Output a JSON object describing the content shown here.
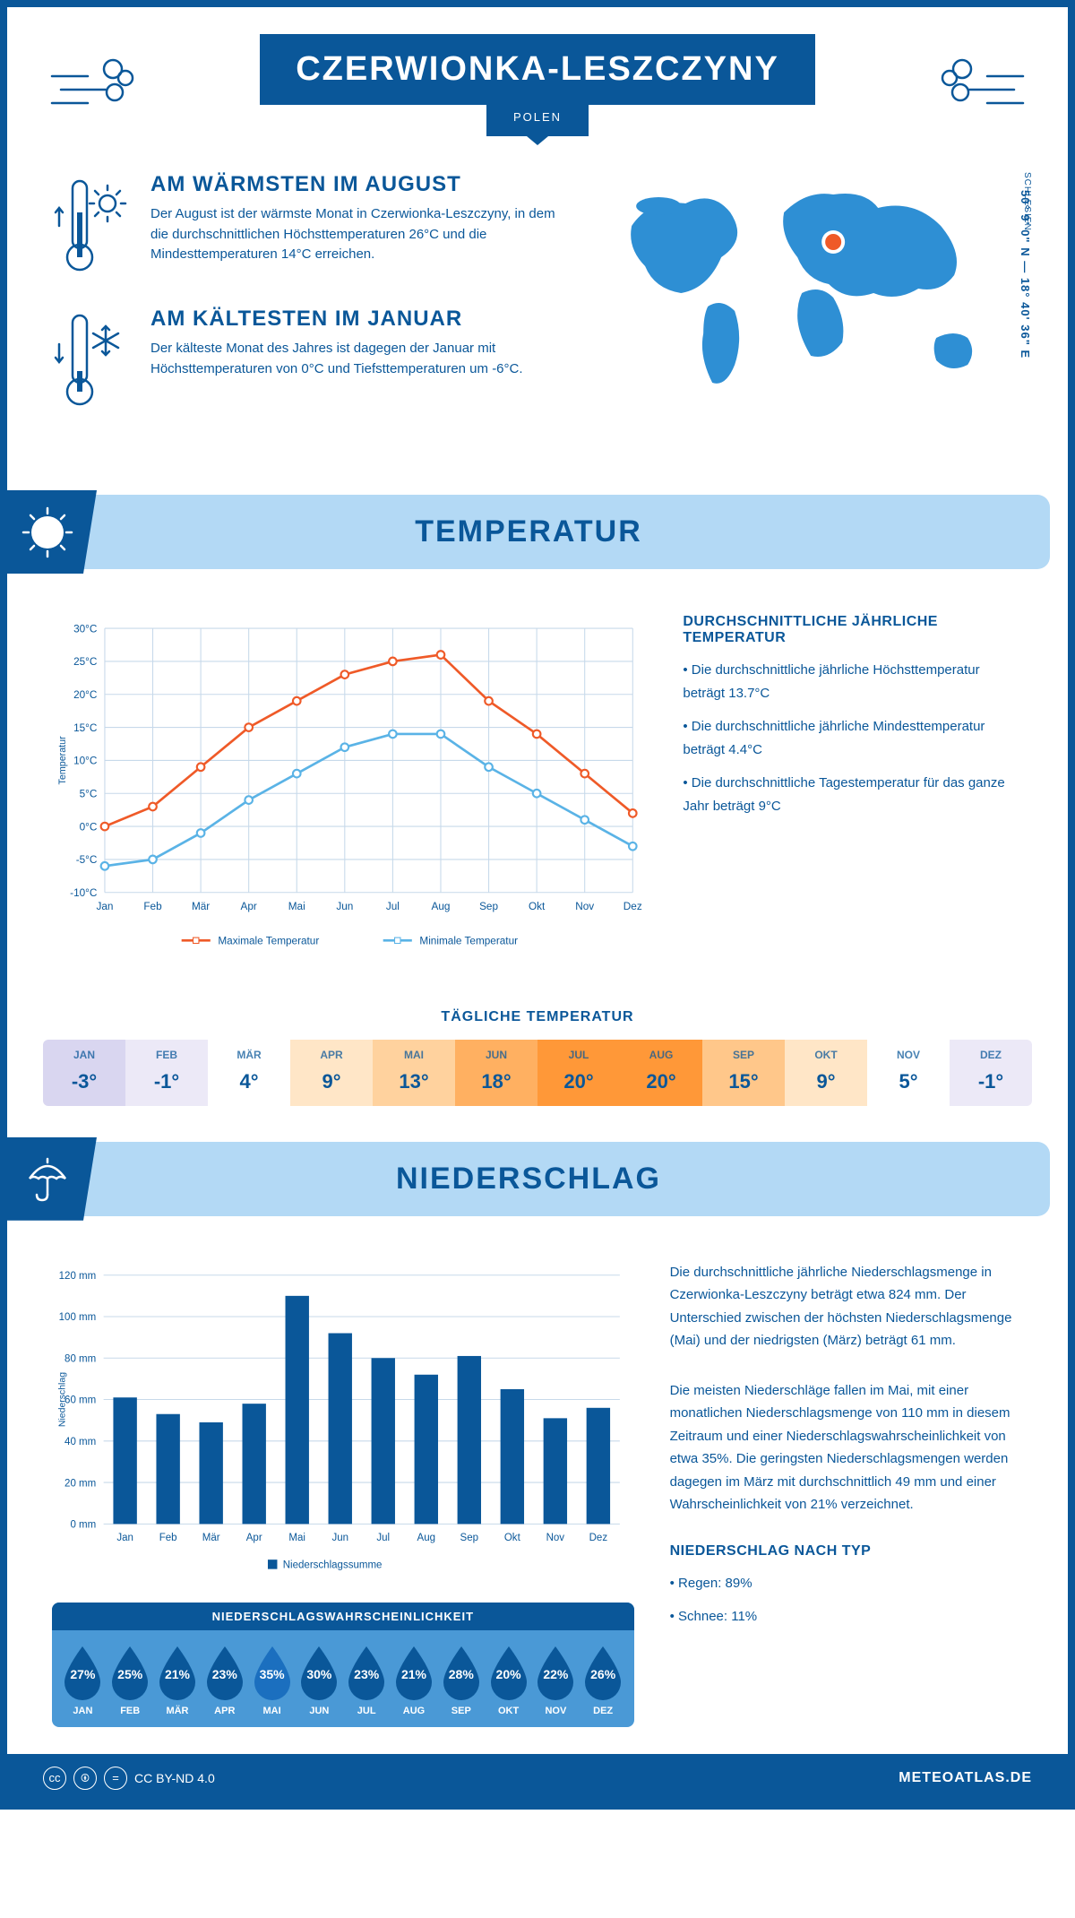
{
  "header": {
    "city": "CZERWIONKA-LESZCZYNY",
    "country": "POLEN",
    "coords": "50° 9' 0\" N — 18° 40' 36\" E",
    "region": "SCHLESIEN"
  },
  "facts": {
    "warm_title": "AM WÄRMSTEN IM AUGUST",
    "warm_text": "Der August ist der wärmste Monat in Czerwionka-Leszczyny, in dem die durchschnittlichen Höchsttemperaturen 26°C und die Mindesttemperaturen 14°C erreichen.",
    "cold_title": "AM KÄLTESTEN IM JANUAR",
    "cold_text": "Der kälteste Monat des Jahres ist dagegen der Januar mit Höchsttemperaturen von 0°C und Tiefsttemperaturen um -6°C."
  },
  "temp_section": {
    "title": "TEMPERATUR",
    "stats_title": "DURCHSCHNITTLICHE JÄHRLICHE TEMPERATUR",
    "stat1": "• Die durchschnittliche jährliche Höchsttemperatur beträgt 13.7°C",
    "stat2": "• Die durchschnittliche jährliche Mindesttemperatur beträgt 4.4°C",
    "stat3": "• Die durchschnittliche Tagestemperatur für das ganze Jahr beträgt 9°C",
    "daily_title": "TÄGLICHE TEMPERATUR",
    "chart": {
      "months": [
        "Jan",
        "Feb",
        "Mär",
        "Apr",
        "Mai",
        "Jun",
        "Jul",
        "Aug",
        "Sep",
        "Okt",
        "Nov",
        "Dez"
      ],
      "max": [
        0,
        3,
        9,
        15,
        19,
        23,
        25,
        26,
        19,
        14,
        8,
        2
      ],
      "min": [
        -6,
        -5,
        -1,
        4,
        8,
        12,
        14,
        14,
        9,
        5,
        1,
        -3
      ],
      "ylim": [
        -10,
        30
      ],
      "ytick_step": 5,
      "max_color": "#ef5a28",
      "min_color": "#5ab3e6",
      "grid_color": "#c7d9ea",
      "legend_max": "Maximale Temperatur",
      "legend_min": "Minimale Temperatur",
      "ylabel": "Temperatur"
    },
    "daily": {
      "months": [
        "JAN",
        "FEB",
        "MÄR",
        "APR",
        "MAI",
        "JUN",
        "JUL",
        "AUG",
        "SEP",
        "OKT",
        "NOV",
        "DEZ"
      ],
      "values": [
        "-3°",
        "-1°",
        "4°",
        "9°",
        "13°",
        "18°",
        "20°",
        "20°",
        "15°",
        "9°",
        "5°",
        "-1°"
      ],
      "colors": [
        "#d9d6f0",
        "#ece9f7",
        "#ffffff",
        "#ffe6c7",
        "#ffd29e",
        "#ffb061",
        "#ff9838",
        "#ff9838",
        "#ffc78a",
        "#ffe6c7",
        "#ffffff",
        "#ece9f7"
      ]
    }
  },
  "precip_section": {
    "title": "NIEDERSCHLAG",
    "text1": "Die durchschnittliche jährliche Niederschlagsmenge in Czerwionka-Leszczyny beträgt etwa 824 mm. Der Unterschied zwischen der höchsten Niederschlagsmenge (Mai) und der niedrigsten (März) beträgt 61 mm.",
    "text2": "Die meisten Niederschläge fallen im Mai, mit einer monatlichen Niederschlagsmenge von 110 mm in diesem Zeitraum und einer Niederschlagswahrscheinlichkeit von etwa 35%. Die geringsten Niederschlagsmengen werden dagegen im März mit durchschnittlich 49 mm und einer Wahrscheinlichkeit von 21% verzeichnet.",
    "type_title": "NIEDERSCHLAG NACH TYP",
    "type_rain": "• Regen: 89%",
    "type_snow": "• Schnee: 11%",
    "chart": {
      "months": [
        "Jan",
        "Feb",
        "Mär",
        "Apr",
        "Mai",
        "Jun",
        "Jul",
        "Aug",
        "Sep",
        "Okt",
        "Nov",
        "Dez"
      ],
      "values": [
        61,
        53,
        49,
        58,
        110,
        92,
        80,
        72,
        81,
        65,
        51,
        56
      ],
      "ylim": [
        0,
        120
      ],
      "ytick_step": 20,
      "bar_color": "#0a5799",
      "grid_color": "#c7d9ea",
      "legend": "Niederschlagssumme",
      "ylabel": "Niederschlag"
    },
    "prob": {
      "title": "NIEDERSCHLAGSWAHRSCHEINLICHKEIT",
      "months": [
        "JAN",
        "FEB",
        "MÄR",
        "APR",
        "MAI",
        "JUN",
        "JUL",
        "AUG",
        "SEP",
        "OKT",
        "NOV",
        "DEZ"
      ],
      "values": [
        "27%",
        "25%",
        "21%",
        "23%",
        "35%",
        "30%",
        "23%",
        "21%",
        "28%",
        "20%",
        "22%",
        "26%"
      ],
      "drop_color": "#0a5799",
      "drop_max_color": "#1b6fbf"
    }
  },
  "footer": {
    "license": "CC BY-ND 4.0",
    "brand": "METEOATLAS.DE"
  }
}
